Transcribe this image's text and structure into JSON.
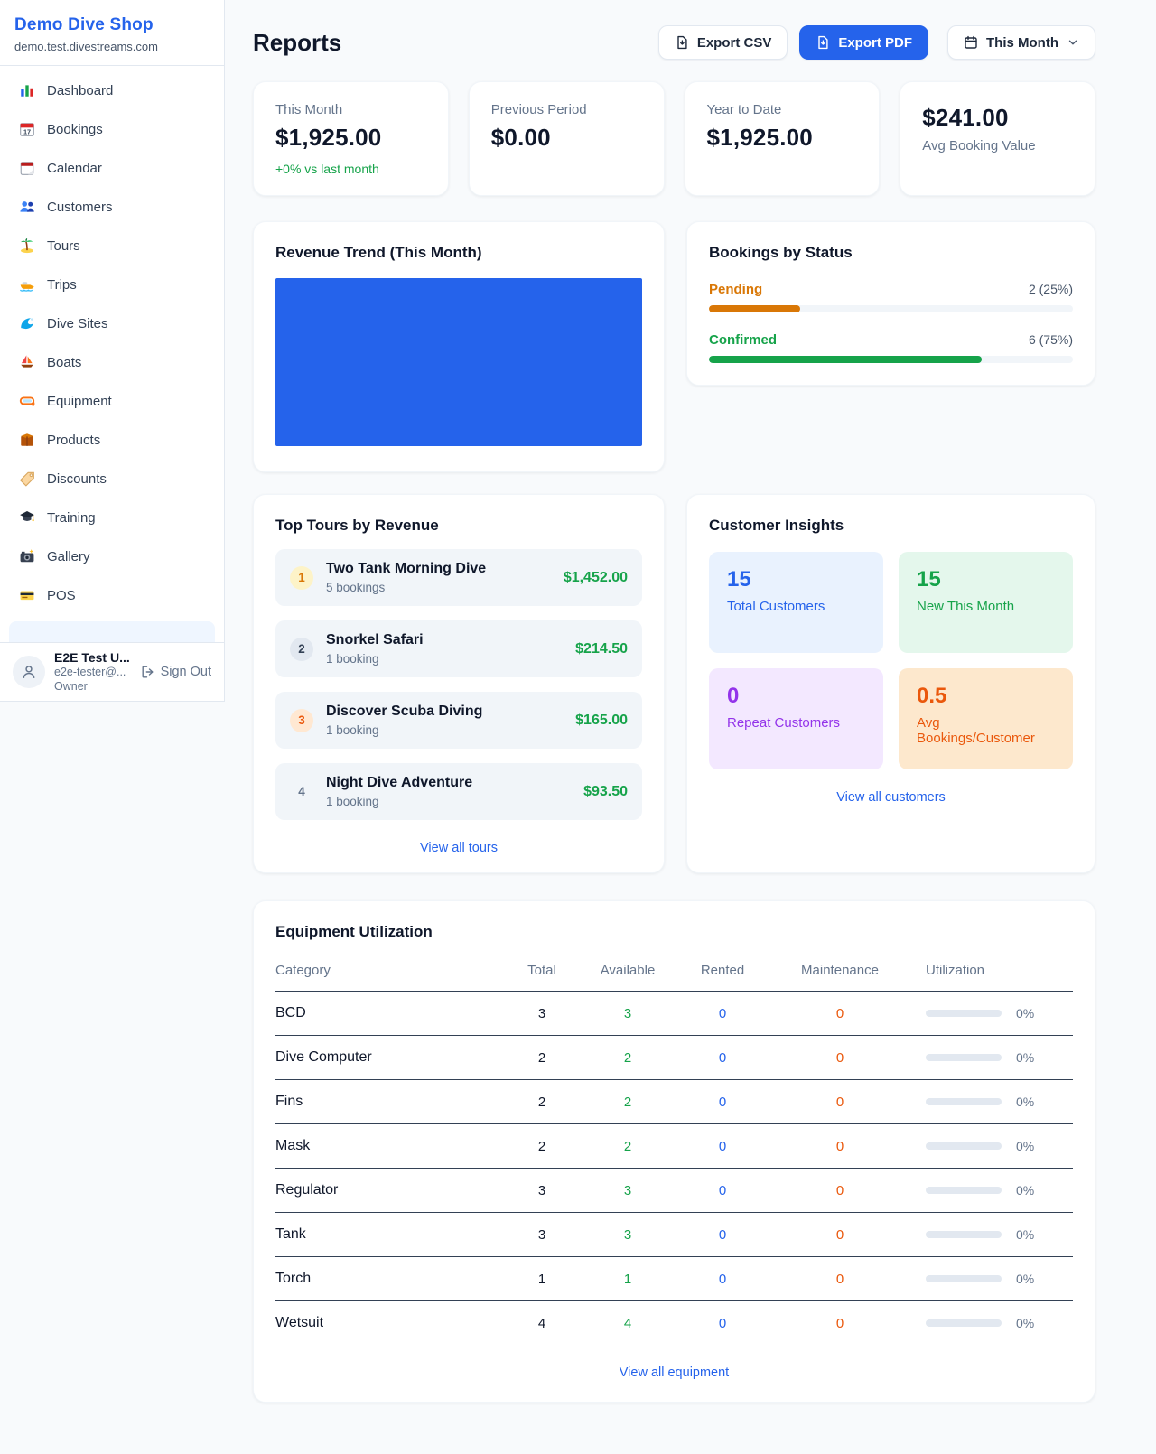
{
  "sidebar": {
    "shop_name": "Demo Dive Shop",
    "shop_domain": "demo.test.divestreams.com",
    "items": [
      {
        "icon": "bar-chart-icon",
        "label": "Dashboard"
      },
      {
        "icon": "calendar-date-icon",
        "label": "Bookings"
      },
      {
        "icon": "tear-off-calendar-icon",
        "label": "Calendar"
      },
      {
        "icon": "people-icon",
        "label": "Customers"
      },
      {
        "icon": "palm-island-icon",
        "label": "Tours"
      },
      {
        "icon": "speedboat-icon",
        "label": "Trips"
      },
      {
        "icon": "wave-icon",
        "label": "Dive Sites"
      },
      {
        "icon": "sailboat-icon",
        "label": "Boats"
      },
      {
        "icon": "dive-mask-icon",
        "label": "Equipment"
      },
      {
        "icon": "package-icon",
        "label": "Products"
      },
      {
        "icon": "tag-icon",
        "label": "Discounts"
      },
      {
        "icon": "graduation-cap-icon",
        "label": "Training"
      },
      {
        "icon": "camera-icon",
        "label": "Gallery"
      },
      {
        "icon": "credit-card-icon",
        "label": "POS"
      }
    ],
    "user": {
      "name": "E2E Test U...",
      "email": "e2e-tester@...",
      "role": "Owner",
      "sign_out_label": "Sign Out"
    }
  },
  "header": {
    "title": "Reports",
    "export_csv_label": "Export CSV",
    "export_pdf_label": "Export PDF",
    "period_label": "This Month",
    "accent_color": "#2563eb"
  },
  "stats": [
    {
      "label": "This Month",
      "value": "$1,925.00",
      "change": "+0% vs last month"
    },
    {
      "label": "Previous Period",
      "value": "$0.00"
    },
    {
      "label": "Year to Date",
      "value": "$1,925.00"
    },
    {
      "label": "Avg Booking Value",
      "value": "$241.00"
    }
  ],
  "revenue_trend": {
    "title": "Revenue Trend (This Month)",
    "bar_color": "#2563eb"
  },
  "bookings_by_status": {
    "title": "Bookings by Status",
    "rows": [
      {
        "label": "Pending",
        "count_text": "2 (25%)",
        "percent": 25,
        "color": "#d97706"
      },
      {
        "label": "Confirmed",
        "count_text": "6 (75%)",
        "percent": 75,
        "color": "#16a34a"
      }
    ]
  },
  "top_tours": {
    "title": "Top Tours by Revenue",
    "view_all_label": "View all tours",
    "items": [
      {
        "rank": "1",
        "name": "Two Tank Morning Dive",
        "bookings": "5 bookings",
        "revenue": "$1,452.00"
      },
      {
        "rank": "2",
        "name": "Snorkel Safari",
        "bookings": "1 booking",
        "revenue": "$214.50"
      },
      {
        "rank": "3",
        "name": "Discover Scuba Diving",
        "bookings": "1 booking",
        "revenue": "$165.00"
      },
      {
        "rank": "4",
        "name": "Night Dive Adventure",
        "bookings": "1 booking",
        "revenue": "$93.50"
      }
    ]
  },
  "customer_insights": {
    "title": "Customer Insights",
    "view_all_label": "View all customers",
    "tiles": [
      {
        "value": "15",
        "label": "Total Customers",
        "color": "#2563eb",
        "bg": "#e9f2fe"
      },
      {
        "value": "15",
        "label": "New This Month",
        "color": "#16a34a",
        "bg": "#e4f7ec"
      },
      {
        "value": "0",
        "label": "Repeat Customers",
        "color": "#9333ea",
        "bg": "#f3e8ff"
      },
      {
        "value": "0.5",
        "label": "Avg Bookings/Customer",
        "color": "#ea580c",
        "bg": "#fde8cd"
      }
    ]
  },
  "equipment_utilization": {
    "title": "Equipment Utilization",
    "view_all_label": "View all equipment",
    "columns": [
      "Category",
      "Total",
      "Available",
      "Rented",
      "Maintenance",
      "Utilization"
    ],
    "rows": [
      {
        "category": "BCD",
        "total": "3",
        "available": "3",
        "rented": "0",
        "maintenance": "0",
        "utilization_percent": 0,
        "utilization_text": "0%"
      },
      {
        "category": "Dive Computer",
        "total": "2",
        "available": "2",
        "rented": "0",
        "maintenance": "0",
        "utilization_percent": 0,
        "utilization_text": "0%"
      },
      {
        "category": "Fins",
        "total": "2",
        "available": "2",
        "rented": "0",
        "maintenance": "0",
        "utilization_percent": 0,
        "utilization_text": "0%"
      },
      {
        "category": "Mask",
        "total": "2",
        "available": "2",
        "rented": "0",
        "maintenance": "0",
        "utilization_percent": 0,
        "utilization_text": "0%"
      },
      {
        "category": "Regulator",
        "total": "3",
        "available": "3",
        "rented": "0",
        "maintenance": "0",
        "utilization_percent": 0,
        "utilization_text": "0%"
      },
      {
        "category": "Tank",
        "total": "3",
        "available": "3",
        "rented": "0",
        "maintenance": "0",
        "utilization_percent": 0,
        "utilization_text": "0%"
      },
      {
        "category": "Torch",
        "total": "1",
        "available": "1",
        "rented": "0",
        "maintenance": "0",
        "utilization_percent": 0,
        "utilization_text": "0%"
      },
      {
        "category": "Wetsuit",
        "total": "4",
        "available": "4",
        "rented": "0",
        "maintenance": "0",
        "utilization_percent": 0,
        "utilization_text": "0%"
      }
    ]
  },
  "chart_data": [
    {
      "type": "bar",
      "title": "Revenue Trend (This Month)",
      "categories": [
        "This Month"
      ],
      "values": [
        1925.0
      ],
      "color": "#2563eb",
      "note": "single bar fills entire plot area"
    },
    {
      "type": "bar",
      "title": "Bookings by Status",
      "categories": [
        "Pending",
        "Confirmed"
      ],
      "values": [
        2,
        6
      ],
      "percents": [
        25,
        75
      ],
      "colors": [
        "#d97706",
        "#16a34a"
      ]
    }
  ]
}
